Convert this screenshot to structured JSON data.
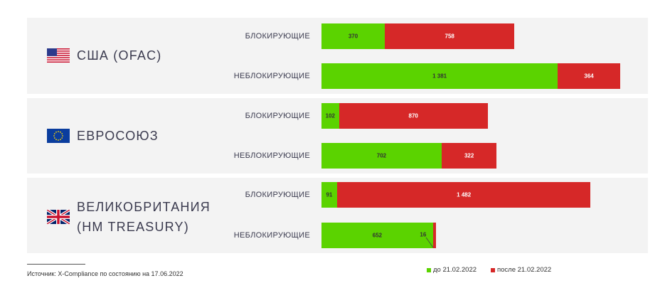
{
  "chart_data": {
    "type": "bar",
    "orientation": "horizontal",
    "stacked": true,
    "groups": [
      {
        "id": "usa",
        "country": "США (OFAC)",
        "flag": "us-flag-icon",
        "rows": [
          {
            "category": "БЛОКИРУЮЩИЕ",
            "before": 370,
            "after": 758,
            "before_label": "370",
            "after_label": "758"
          },
          {
            "category": "НЕБЛОКИРУЮЩИЕ",
            "before": 1381,
            "after": 364,
            "before_label": "1 381",
            "after_label": "364"
          }
        ]
      },
      {
        "id": "eu",
        "country": "ЕВРОСОЮЗ",
        "flag": "eu-flag-icon",
        "rows": [
          {
            "category": "БЛОКИРУЮЩИЕ",
            "before": 102,
            "after": 870,
            "before_label": "102",
            "after_label": "870"
          },
          {
            "category": "НЕБЛОКИРУЮЩИЕ",
            "before": 702,
            "after": 322,
            "before_label": "702",
            "after_label": "322"
          }
        ]
      },
      {
        "id": "uk",
        "country": "ВЕЛИКОБРИТАНИЯ (HM TREASURY)",
        "flag": "uk-flag-icon",
        "rows": [
          {
            "category": "БЛОКИРУЮЩИЕ",
            "before": 91,
            "after": 1482,
            "before_label": "91",
            "after_label": "1 482"
          },
          {
            "category": "НЕБЛОКИРУЮЩИЕ",
            "before": 652,
            "after": 16,
            "before_label": "652",
            "after_label": "16"
          }
        ]
      }
    ],
    "series": [
      {
        "key": "before",
        "name": "до 21.02.2022",
        "color": "#5bd300"
      },
      {
        "key": "after",
        "name": "после 21.02.2022",
        "color": "#d62828"
      }
    ]
  },
  "source": "Источник: X-Compliance по состоянию на 17.06.2022"
}
